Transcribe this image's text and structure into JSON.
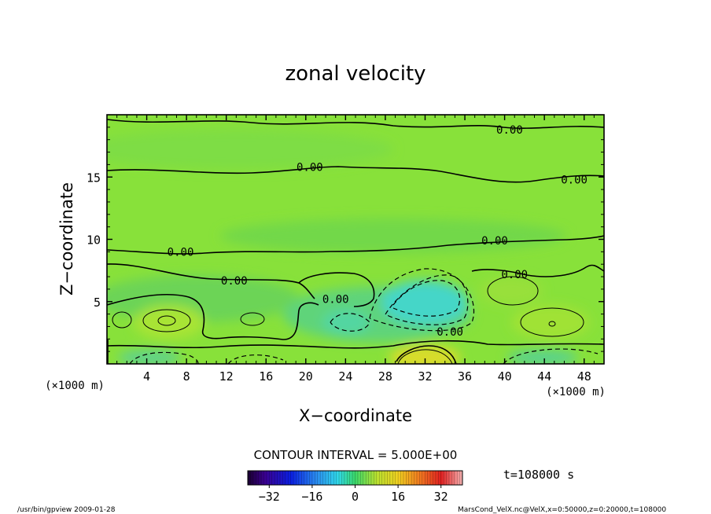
{
  "chart_data": {
    "type": "heatmap",
    "title": "zonal velocity",
    "xlabel": "X−coordinate",
    "ylabel": "Z−coordinate",
    "x_unit": "(×1000 m)",
    "y_unit": "(×1000 m)",
    "xlim": [
      0,
      50
    ],
    "ylim": [
      0,
      20
    ],
    "x_ticks": [
      4,
      8,
      12,
      16,
      20,
      24,
      28,
      32,
      36,
      40,
      44,
      48
    ],
    "y_ticks": [
      5,
      10,
      15
    ],
    "contour_interval_text": "CONTOUR INTERVAL = 5.000E+00",
    "contour_labels": [
      {
        "text": "0.00",
        "x": 40.5,
        "z": 18.8
      },
      {
        "text": "0.00",
        "x": 20.4,
        "z": 15.8
      },
      {
        "text": "0.00",
        "x": 47.0,
        "z": 14.8
      },
      {
        "text": "0.00",
        "x": 39.0,
        "z": 9.9
      },
      {
        "text": "0.00",
        "x": 7.4,
        "z": 9.0
      },
      {
        "text": "0.00",
        "x": 41.0,
        "z": 7.2
      },
      {
        "text": "0.00",
        "x": 12.8,
        "z": 6.7
      },
      {
        "text": "0.00",
        "x": 23.0,
        "z": 5.2
      },
      {
        "text": "0.00",
        "x": 34.5,
        "z": 2.6
      }
    ],
    "features": [
      {
        "type": "max",
        "x": 33.0,
        "z": 0.6,
        "value": 10
      },
      {
        "type": "min",
        "x": 32.0,
        "z": 5.0,
        "value": -8
      },
      {
        "type": "max",
        "x": 6.7,
        "z": 3.5,
        "value": 6
      },
      {
        "type": "max",
        "x": 44.0,
        "z": 3.3,
        "value": 6
      },
      {
        "type": "max",
        "x": 41.5,
        "z": 6.0,
        "value": 4
      },
      {
        "type": "min",
        "x": 45.0,
        "z": 0.4,
        "value": -5
      },
      {
        "type": "min",
        "x": 5.0,
        "z": 0.4,
        "value": -4
      },
      {
        "type": "min",
        "x": 23.0,
        "z": 3.3,
        "value": -3
      },
      {
        "type": "min",
        "x": 15.0,
        "z": 0.4,
        "value": -3
      },
      {
        "type": "min",
        "x": 26.0,
        "z": 0.5,
        "value": -3
      }
    ],
    "colorbar": {
      "min": -40,
      "max": 40,
      "tick_labels": [
        "−32",
        "−16",
        "0",
        "16",
        "32"
      ],
      "tick_values": [
        -32,
        -16,
        0,
        16,
        32
      ]
    },
    "time_label": "t=108000 s",
    "grid": false
  },
  "footer": {
    "left": "/usr/bin/gpview  2009-01-28",
    "right": "MarsCond_VelX.nc@VelX,x=0:50000,z=0:20000,t=108000"
  },
  "colors": {
    "background": "#88e13a",
    "contour": "#000000"
  }
}
